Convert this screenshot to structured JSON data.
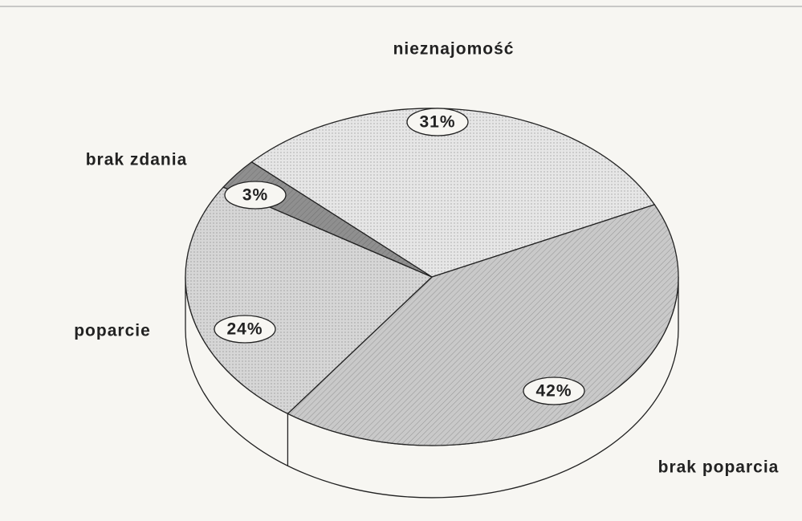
{
  "chart_data": {
    "type": "pie",
    "categories": [
      "nieznajomość",
      "brak poparcia",
      "poparcie",
      "brak zdania"
    ],
    "values": [
      31,
      42,
      24,
      3
    ],
    "value_labels": [
      "31%",
      "42%",
      "24%",
      "3%"
    ],
    "colors": [
      "#e6e6e6",
      "#c9c9c9",
      "#d6d6d6",
      "#8f8f8f"
    ]
  }
}
